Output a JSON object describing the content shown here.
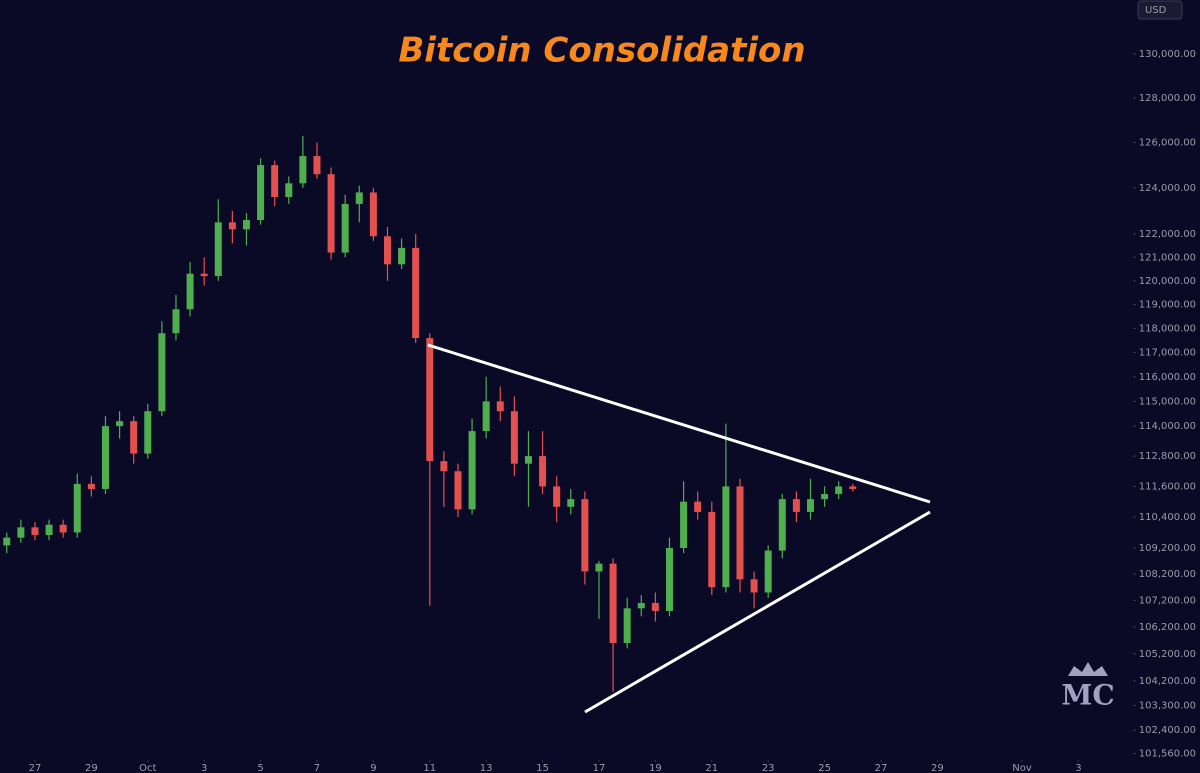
{
  "chart_data": {
    "type": "candlestick",
    "title": "Bitcoin Consolidation",
    "currency": "USD",
    "watermark": "MC",
    "log_scale": true,
    "up_color": "#4fae4e",
    "down_color": "#e2514f",
    "title_color": "#f7891c",
    "x": [
      -1,
      -0.5,
      0,
      0.5,
      1,
      1.5,
      2,
      2.5,
      3,
      3.5,
      4,
      4.5,
      5,
      5.5,
      6,
      6.5,
      7,
      7.5,
      8,
      8.5,
      9,
      9.5,
      10,
      10.5,
      11,
      11.5,
      12,
      12.5,
      13,
      13.5,
      14,
      14.5,
      15,
      15.5,
      16,
      16.5,
      17,
      17.5,
      18,
      18.5,
      19,
      19.5,
      20,
      20.5,
      21,
      21.5,
      22,
      22.5,
      23,
      23.5,
      24,
      24.5,
      25,
      25.5,
      26,
      26.5,
      27,
      27.5,
      28,
      28.5,
      29
    ],
    "open": [
      109300,
      109600,
      110000,
      109700,
      110100,
      109800,
      111700,
      111500,
      114000,
      114200,
      112900,
      114600,
      117800,
      118800,
      120300,
      120200,
      122500,
      122200,
      122600,
      125000,
      123600,
      124200,
      125400,
      124600,
      121200,
      123300,
      123800,
      121900,
      120700,
      121400,
      117600,
      112600,
      112200,
      110700,
      113800,
      115000,
      114600,
      112500,
      112800,
      111600,
      110800,
      111100,
      108300,
      108600,
      105600,
      106900,
      107100,
      106800,
      109200,
      111000,
      110600,
      107700,
      111600,
      108000,
      107500,
      109100,
      111100,
      110600,
      111100,
      111300,
      111600
    ],
    "high": [
      109800,
      110300,
      110200,
      110300,
      110300,
      112100,
      112000,
      114400,
      114600,
      114400,
      114900,
      118300,
      119400,
      120800,
      121000,
      123500,
      123000,
      122900,
      125300,
      125200,
      124500,
      126300,
      126000,
      124900,
      123700,
      124100,
      124000,
      122300,
      121800,
      122000,
      117800,
      113000,
      112500,
      114300,
      116000,
      115600,
      115200,
      113800,
      113800,
      112000,
      111500,
      111400,
      108700,
      108800,
      107300,
      107400,
      107500,
      109600,
      111800,
      111400,
      111000,
      114100,
      111900,
      108300,
      109300,
      111300,
      111400,
      111900,
      111600,
      111800,
      111700
    ],
    "low": [
      109000,
      109400,
      109500,
      109500,
      109600,
      109600,
      111200,
      111300,
      113500,
      112500,
      112700,
      114400,
      117500,
      118500,
      119800,
      120000,
      121600,
      121500,
      122400,
      123200,
      123300,
      124000,
      124400,
      120900,
      121000,
      122500,
      121700,
      120000,
      120500,
      117400,
      107000,
      110800,
      110400,
      110500,
      113500,
      114200,
      112000,
      110800,
      111300,
      110200,
      110500,
      107800,
      106500,
      103800,
      105400,
      106600,
      106400,
      106600,
      109000,
      110300,
      107400,
      107500,
      107500,
      106900,
      107300,
      108800,
      110200,
      110300,
      110800,
      111100,
      111400
    ],
    "close": [
      109600,
      110000,
      109700,
      110100,
      109800,
      111700,
      111500,
      114000,
      114200,
      112900,
      114600,
      117800,
      118800,
      120300,
      120200,
      122500,
      122200,
      122600,
      125000,
      123600,
      124200,
      125400,
      124600,
      121200,
      123300,
      123800,
      121900,
      120700,
      121400,
      117600,
      112600,
      112200,
      110700,
      113800,
      115000,
      114600,
      112500,
      112800,
      111600,
      110800,
      111100,
      108300,
      108600,
      105600,
      106900,
      107100,
      106800,
      109200,
      111000,
      110600,
      107700,
      111600,
      108000,
      107500,
      109100,
      111100,
      110600,
      111100,
      111300,
      111600,
      111500
    ],
    "xlim": [
      -1.24,
      38.83
    ],
    "xticks": [
      {
        "value": 0,
        "label": "27"
      },
      {
        "value": 2,
        "label": "29"
      },
      {
        "value": 4,
        "label": "Oct"
      },
      {
        "value": 6,
        "label": "3"
      },
      {
        "value": 8,
        "label": "5"
      },
      {
        "value": 10,
        "label": "7"
      },
      {
        "value": 12,
        "label": "9"
      },
      {
        "value": 14,
        "label": "11"
      },
      {
        "value": 16,
        "label": "13"
      },
      {
        "value": 18,
        "label": "15"
      },
      {
        "value": 20,
        "label": "17"
      },
      {
        "value": 22,
        "label": "19"
      },
      {
        "value": 24,
        "label": "21"
      },
      {
        "value": 26,
        "label": "23"
      },
      {
        "value": 28,
        "label": "25"
      },
      {
        "value": 30,
        "label": "27"
      },
      {
        "value": 32,
        "label": "29"
      },
      {
        "value": 35,
        "label": "Nov"
      },
      {
        "value": 37,
        "label": "3"
      }
    ],
    "ylim": [
      101400,
      132500
    ],
    "yticks": [
      {
        "value": 130000,
        "label": "130,000.00"
      },
      {
        "value": 128000,
        "label": "128,000.00"
      },
      {
        "value": 126000,
        "label": "126,000.00"
      },
      {
        "value": 124000,
        "label": "124,000.00"
      },
      {
        "value": 122000,
        "label": "122,000.00"
      },
      {
        "value": 121000,
        "label": "121,000.00"
      },
      {
        "value": 120000,
        "label": "120,000.00"
      },
      {
        "value": 119000,
        "label": "119,000.00"
      },
      {
        "value": 118000,
        "label": "118,000.00"
      },
      {
        "value": 117000,
        "label": "117,000.00"
      },
      {
        "value": 116000,
        "label": "116,000.00"
      },
      {
        "value": 115000,
        "label": "115,000.00"
      },
      {
        "value": 114000,
        "label": "114,000.00"
      },
      {
        "value": 112800,
        "label": "112,800.00"
      },
      {
        "value": 111600,
        "label": "111,600.00"
      },
      {
        "value": 110400,
        "label": "110,400.00"
      },
      {
        "value": 109200,
        "label": "109,200.00"
      },
      {
        "value": 108200,
        "label": "108,200.00"
      },
      {
        "value": 107200,
        "label": "107,200.00"
      },
      {
        "value": 106200,
        "label": "106,200.00"
      },
      {
        "value": 105200,
        "label": "105,200.00"
      },
      {
        "value": 104200,
        "label": "104,200.00"
      },
      {
        "value": 103300,
        "label": "103,300.00"
      },
      {
        "value": 102400,
        "label": "102,400.00"
      },
      {
        "value": 101560,
        "label": "101,560.00"
      }
    ]
  }
}
